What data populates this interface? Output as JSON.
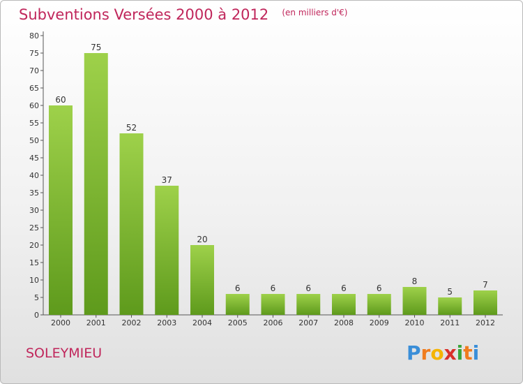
{
  "chart_data": {
    "type": "bar",
    "title": "Subventions Versées 2000 à 2012",
    "subtitle": "(en milliers d'€)",
    "categories": [
      "2000",
      "2001",
      "2002",
      "2003",
      "2004",
      "2005",
      "2006",
      "2007",
      "2008",
      "2009",
      "2010",
      "2011",
      "2012"
    ],
    "values": [
      60,
      75,
      52,
      37,
      20,
      6,
      6,
      6,
      6,
      6,
      8,
      5,
      7
    ],
    "ylim": [
      0,
      80
    ],
    "yticks": [
      0,
      5,
      10,
      15,
      20,
      25,
      30,
      35,
      40,
      45,
      50,
      55,
      60,
      65,
      70,
      75,
      80
    ],
    "grid": false,
    "bar_color": "#7cbc32",
    "bar_color_light": "#9ed14a",
    "bar_color_dark": "#5e9a1c"
  },
  "location": "SOLEYMIEU",
  "brand": {
    "letters": [
      "P",
      "r",
      "o",
      "x",
      "i",
      "t",
      "i"
    ],
    "colors": [
      "#3a8ed8",
      "#f07c1e",
      "#f5b400",
      "#d9302a",
      "#3aa53a",
      "#f07c1e",
      "#3a8ed8"
    ]
  },
  "title_color": "#c0265b"
}
